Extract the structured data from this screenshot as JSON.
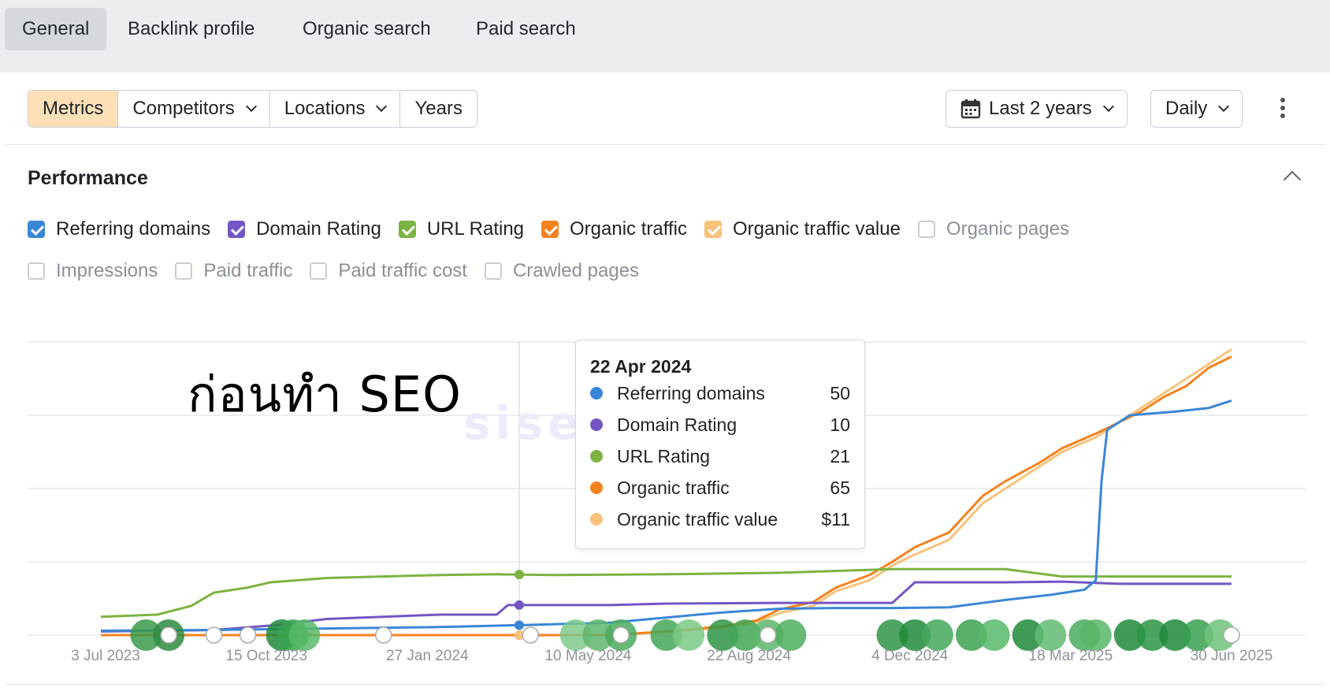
{
  "tabs": [
    "General",
    "Backlink profile",
    "Organic search",
    "Paid search"
  ],
  "toolbar": {
    "segments": [
      "Metrics",
      "Competitors",
      "Locations",
      "Years"
    ],
    "range_label": "Last 2 years",
    "interval_label": "Daily"
  },
  "section_title": "Performance",
  "checkboxes_row1": [
    {
      "label": "Referring domains",
      "checked": true,
      "color": "#3a86d6"
    },
    {
      "label": "Domain Rating",
      "checked": true,
      "color": "#7356c4"
    },
    {
      "label": "URL Rating",
      "checked": true,
      "color": "#7cb342"
    },
    {
      "label": "Organic traffic",
      "checked": true,
      "color": "#f5821f"
    },
    {
      "label": "Organic traffic value",
      "checked": true,
      "color": "#f9c27b"
    },
    {
      "label": "Organic pages",
      "checked": false,
      "color": "#cccccc"
    }
  ],
  "checkboxes_row2": [
    {
      "label": "Impressions",
      "checked": false
    },
    {
      "label": "Paid traffic",
      "checked": false
    },
    {
      "label": "Paid traffic cost",
      "checked": false
    },
    {
      "label": "Crawled pages",
      "checked": false
    }
  ],
  "chart_title": "ก่อนทำ SEO",
  "watermark": "sisearch",
  "tooltip": {
    "date": "22 Apr 2024",
    "rows": [
      {
        "name": "Referring domains",
        "value": "50",
        "color": "#3a86d6"
      },
      {
        "name": "Domain Rating",
        "value": "10",
        "color": "#7356c4"
      },
      {
        "name": "URL Rating",
        "value": "21",
        "color": "#7cb342"
      },
      {
        "name": "Organic traffic",
        "value": "65",
        "color": "#f5821f"
      },
      {
        "name": "Organic traffic value",
        "value": "$11",
        "color": "#f9c27b"
      }
    ]
  },
  "chart_data": {
    "type": "line",
    "x_ticks": [
      "3 Jul 2023",
      "15 Oct 2023",
      "27 Jan 2024",
      "10 May 2024",
      "22 Aug 2024",
      "4 Dec 2024",
      "18 Mar 2025",
      "30 Jun 2025"
    ],
    "grid": true,
    "series": [
      {
        "name": "Referring domains",
        "color": "#3a86d6",
        "x": [
          0,
          0.1,
          0.2,
          0.3,
          0.38,
          0.45,
          0.5,
          0.55,
          0.6,
          0.65,
          0.7,
          0.75,
          0.8,
          0.84,
          0.87,
          0.88,
          0.885,
          0.89,
          0.91,
          0.95,
          0.98,
          1.0
        ],
        "y": [
          0.06,
          0.07,
          0.09,
          0.11,
          0.14,
          0.17,
          0.24,
          0.31,
          0.36,
          0.37,
          0.37,
          0.38,
          0.48,
          0.55,
          0.62,
          0.75,
          2.1,
          2.8,
          3.0,
          3.05,
          3.1,
          3.2
        ]
      },
      {
        "name": "Domain Rating",
        "color": "#7356c4",
        "x": [
          0,
          0.1,
          0.15,
          0.2,
          0.3,
          0.35,
          0.36,
          0.4,
          0.45,
          0.5,
          0.6,
          0.7,
          0.72,
          0.73,
          0.75,
          0.8,
          0.85,
          0.9,
          1.0
        ],
        "y": [
          0.05,
          0.07,
          0.13,
          0.22,
          0.28,
          0.28,
          0.41,
          0.41,
          0.41,
          0.43,
          0.44,
          0.44,
          0.72,
          0.72,
          0.72,
          0.72,
          0.73,
          0.7,
          0.7
        ]
      },
      {
        "name": "URL Rating",
        "color": "#7cb342",
        "x": [
          0,
          0.05,
          0.08,
          0.1,
          0.13,
          0.15,
          0.2,
          0.25,
          0.3,
          0.35,
          0.4,
          0.5,
          0.6,
          0.7,
          0.8,
          0.85,
          0.9,
          1.0
        ],
        "y": [
          0.25,
          0.28,
          0.4,
          0.58,
          0.65,
          0.72,
          0.78,
          0.8,
          0.82,
          0.83,
          0.82,
          0.83,
          0.85,
          0.9,
          0.9,
          0.8,
          0.8,
          0.8
        ]
      },
      {
        "name": "Organic traffic",
        "color": "#f5821f",
        "x": [
          0,
          0.45,
          0.5,
          0.55,
          0.58,
          0.6,
          0.63,
          0.65,
          0.68,
          0.7,
          0.72,
          0.75,
          0.78,
          0.8,
          0.83,
          0.85,
          0.88,
          0.9,
          0.92,
          0.94,
          0.96,
          0.98,
          1.0
        ],
        "y": [
          0.0,
          0.0,
          0.05,
          0.12,
          0.2,
          0.35,
          0.45,
          0.65,
          0.82,
          1.0,
          1.2,
          1.4,
          1.9,
          2.1,
          2.35,
          2.55,
          2.75,
          2.9,
          3.05,
          3.25,
          3.4,
          3.65,
          3.8
        ]
      },
      {
        "name": "Organic traffic value",
        "color": "#f9c27b",
        "x": [
          0,
          0.45,
          0.5,
          0.55,
          0.58,
          0.6,
          0.63,
          0.65,
          0.68,
          0.7,
          0.72,
          0.75,
          0.78,
          0.8,
          0.83,
          0.85,
          0.88,
          0.9,
          0.92,
          0.94,
          0.96,
          0.98,
          1.0
        ],
        "y": [
          0.0,
          0.0,
          0.04,
          0.1,
          0.18,
          0.3,
          0.4,
          0.6,
          0.75,
          0.95,
          1.1,
          1.3,
          1.8,
          2.0,
          2.3,
          2.5,
          2.7,
          2.9,
          3.1,
          3.3,
          3.5,
          3.7,
          3.9
        ]
      }
    ]
  }
}
